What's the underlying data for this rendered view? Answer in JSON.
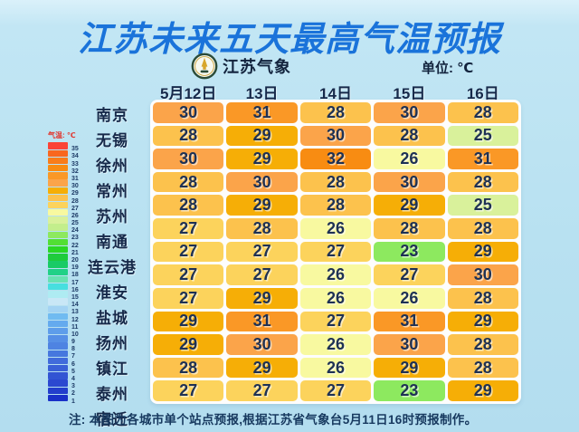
{
  "page": {
    "title": "江苏未来五天最高气温预报",
    "unit_label": "单位: ℃",
    "note": "注: 本图为各城市单个站点预报,根据江苏省气象台5月11日16时预报制作。"
  },
  "brand": {
    "name": "江苏气象",
    "badge_icon": "jiangsu-meteorology-badge"
  },
  "legend": {
    "label": "气温: ℃",
    "min": 1,
    "max": 35
  },
  "temp_colors": {
    "35": "#fb4336",
    "34": "#f9671f",
    "33": "#f97d1a",
    "32": "#f88c12",
    "31": "#fa9826",
    "30": "#fba44a",
    "29": "#f6ae06",
    "28": "#fcc24d",
    "27": "#fcd35c",
    "26": "#f8f9a0",
    "25": "#d9f19b",
    "24": "#c3ee8c",
    "23": "#8de95f",
    "22": "#52df33",
    "21": "#2ad723",
    "20": "#1ecb3c",
    "19": "#19cb66",
    "18": "#21d187",
    "17": "#68e2b2",
    "16": "#47dfdf",
    "15": "#aeebf2",
    "14": "#c9e7f6",
    "13": "#a3d3f3",
    "12": "#70bbf1",
    "11": "#64aaee",
    "10": "#5e9dea",
    "9": "#568fe6",
    "8": "#4e83e2",
    "7": "#4677de",
    "6": "#416bdb",
    "5": "#3a60d7",
    "4": "#3254d3",
    "3": "#2b48d0",
    "2": "#233ecc",
    "1": "#1a31c8"
  },
  "chart_data": {
    "type": "heatmap",
    "title": "江苏未来五天最高气温预报",
    "unit": "℃",
    "columns": [
      "5月12日",
      "13日",
      "14日",
      "15日",
      "16日"
    ],
    "row_labels": [
      "南京",
      "无锡",
      "徐州",
      "常州",
      "苏州",
      "南通",
      "连云港",
      "淮安",
      "盐城",
      "扬州",
      "镇江",
      "泰州",
      "宿迁"
    ],
    "values": [
      [
        30,
        31,
        28,
        30,
        28
      ],
      [
        28,
        29,
        30,
        28,
        25
      ],
      [
        30,
        29,
        32,
        26,
        31
      ],
      [
        28,
        30,
        28,
        30,
        28
      ],
      [
        28,
        29,
        28,
        29,
        25
      ],
      [
        27,
        28,
        26,
        28,
        28
      ],
      [
        27,
        27,
        27,
        23,
        29
      ],
      [
        27,
        27,
        26,
        27,
        30
      ],
      [
        27,
        29,
        26,
        26,
        28
      ],
      [
        29,
        31,
        27,
        31,
        29
      ],
      [
        29,
        30,
        26,
        30,
        28
      ],
      [
        28,
        29,
        26,
        29,
        28
      ],
      [
        27,
        27,
        27,
        23,
        29
      ]
    ],
    "color_scale": {
      "label": "气温: ℃",
      "min": 1,
      "max": 35
    },
    "legend_position": "left",
    "grid": false
  }
}
